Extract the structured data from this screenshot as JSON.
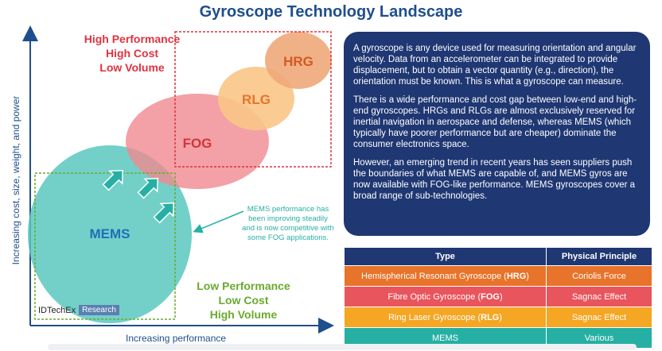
{
  "title": "Gyroscope Technology Landscape",
  "axes": {
    "y_label": "Increasing cost, size, weight, and power",
    "x_label": "Increasing performance"
  },
  "bubbles": [
    {
      "label": "MEMS",
      "color": "#5bc8c0"
    },
    {
      "label": "FOG",
      "color": "#f08a90"
    },
    {
      "label": "RLG",
      "color": "#f9c587"
    },
    {
      "label": "HRG",
      "color": "#f0a87a"
    }
  ],
  "regions": {
    "high": {
      "line1": "High Performance",
      "line2": "High Cost",
      "line3": "Low Volume",
      "color": "#e0323f"
    },
    "low": {
      "line1": "Low Performance",
      "line2": "Low Cost",
      "line3": "High Volume",
      "color": "#6aaa2e"
    }
  },
  "note": "MEMS performance has been improving steadily and is now competitive with some FOG applications.",
  "logo": {
    "brand": "IDTechEx",
    "tag": "Research"
  },
  "info_paragraphs": [
    "A gyroscope is any device used for measuring orientation and angular velocity. Data from an accelerometer can be integrated to provide displacement, but to obtain a vector quantity (e.g., direction), the orientation must be known. This is what a gyroscope can measure.",
    "There is a wide performance and cost gap between low-end and high-end gyroscopes. HRGs and RLGs are almost exclusively reserved for inertial navigation in aerospace and defense, whereas MEMS (which typically have poorer performance but are cheaper) dominate the consumer electronics space.",
    "However, an emerging trend in recent years has seen suppliers push the boundaries of what MEMS are capable of, and MEMS gyros are now available with FOG-like performance. MEMS gyroscopes cover a broad range of sub-technologies."
  ],
  "table": {
    "headers": [
      "Type",
      "Physical Principle"
    ],
    "rows": [
      {
        "type_text": "Hemispherical Resonant Gyroscope (",
        "abbr": "HRG",
        "principle": "Coriolis Force",
        "color": "#e8732a"
      },
      {
        "type_text": "Fibre Optic Gyroscope (",
        "abbr": "FOG",
        "principle": "Sagnac Effect",
        "color": "#e8555d"
      },
      {
        "type_text": "Ring Laser Gyroscope (",
        "abbr": "RLG",
        "principle": "Sagnac Effect",
        "color": "#f5a623"
      },
      {
        "type_text": "MEMS",
        "abbr": "",
        "principle": "Various",
        "color": "#26b0a4"
      }
    ]
  }
}
